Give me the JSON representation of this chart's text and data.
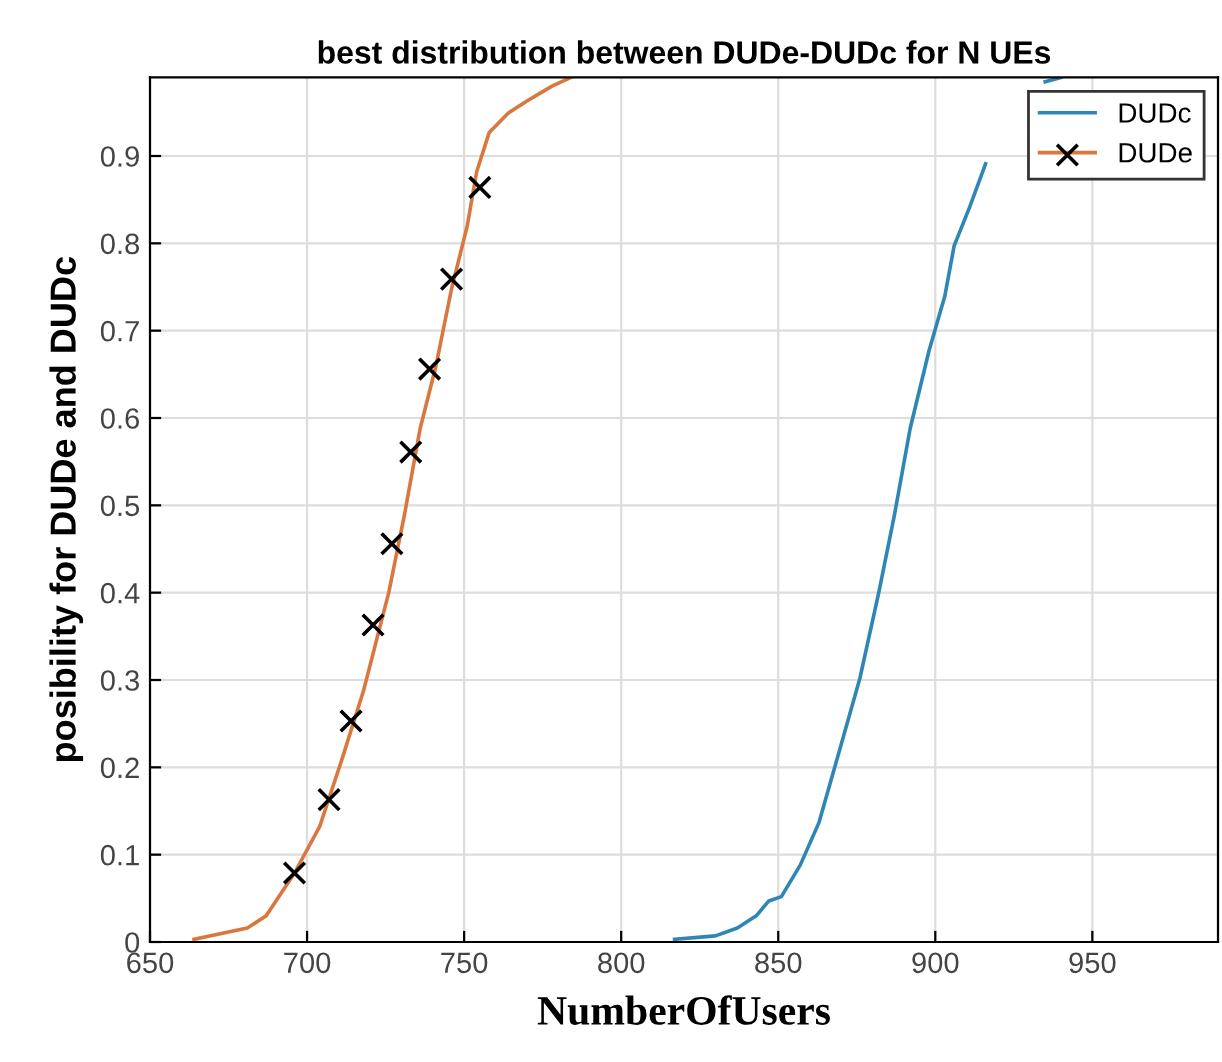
{
  "chart_data": {
    "type": "line",
    "title": "best distribution between DUDe-DUDc for N UEs",
    "xlabel": "NumberOfUsers",
    "ylabel": "posibility for DUDe and DUDc",
    "xlim": [
      650,
      990
    ],
    "xticks": [
      650,
      700,
      750,
      800,
      850,
      900,
      950
    ],
    "ylim": [
      0,
      0.99
    ],
    "yticks": [
      0,
      0.1,
      0.2,
      0.3,
      0.4,
      0.5,
      0.6,
      0.7,
      0.8,
      0.9
    ],
    "grid": true,
    "legend": "top right",
    "series": [
      {
        "name": "DUDc",
        "color": "#2f86b4",
        "marker": "none",
        "x": [
          817,
          830,
          837,
          843,
          847,
          851,
          857,
          863,
          869,
          876,
          882,
          887,
          892,
          898,
          903,
          906,
          911,
          916,
          921,
          929,
          935,
          940
        ],
        "values": [
          0.003,
          0.007,
          0.016,
          0.03,
          0.047,
          0.052,
          0.088,
          0.137,
          0.213,
          0.302,
          0.4,
          0.489,
          0.588,
          0.677,
          0.739,
          0.797,
          0.842,
          0.891,
          null,
          null,
          0.985,
          0.99
        ]
      },
      {
        "name": "DUDe",
        "color": "#d9773f",
        "marker": "none",
        "x": [
          664,
          681,
          687,
          696,
          704,
          711,
          718,
          726,
          731,
          736,
          741,
          746,
          751,
          754,
          758,
          764,
          770,
          778,
          784
        ],
        "values": [
          0.003,
          0.016,
          0.03,
          0.079,
          0.132,
          0.208,
          0.288,
          0.4,
          0.489,
          0.588,
          0.659,
          0.748,
          0.82,
          0.882,
          0.927,
          0.949,
          0.963,
          0.98,
          0.99
        ]
      },
      {
        "type": "scatter",
        "color": "#000000",
        "marker": "cross",
        "x": [
          696,
          707,
          714,
          721,
          727,
          733,
          739,
          746,
          755
        ],
        "values": [
          0.079,
          0.163,
          0.253,
          0.363,
          0.456,
          0.561,
          0.656,
          0.759,
          0.864
        ]
      }
    ]
  }
}
